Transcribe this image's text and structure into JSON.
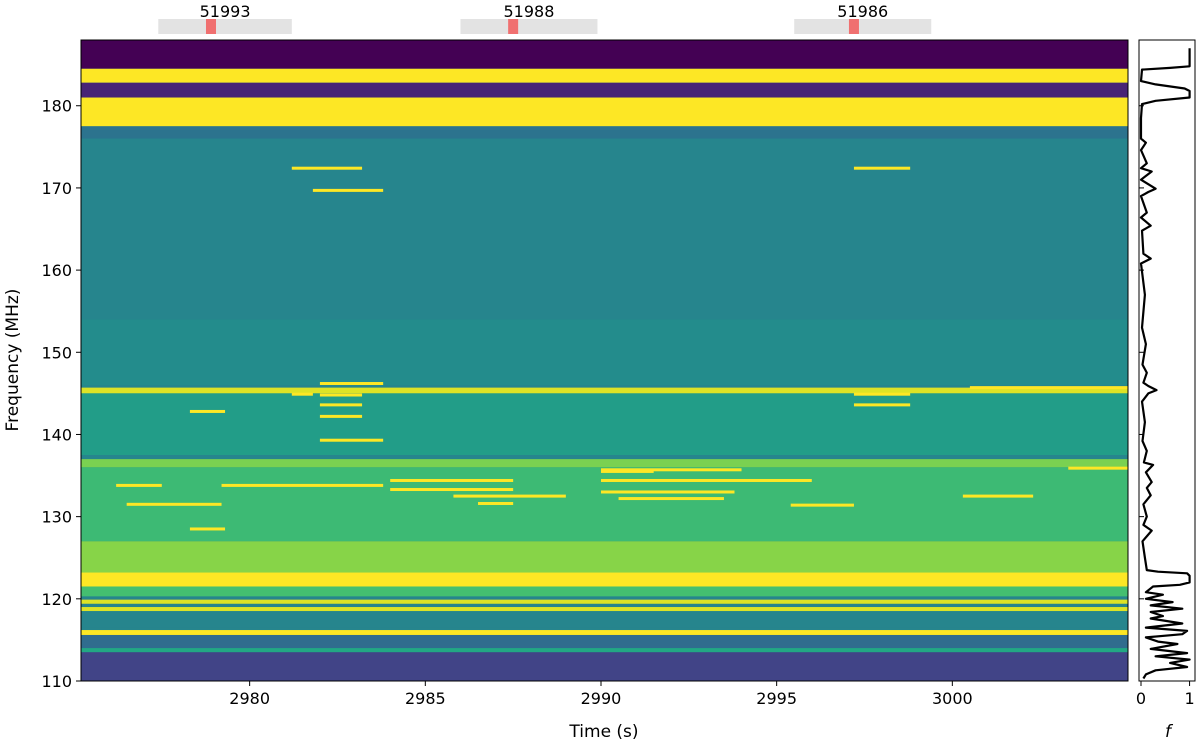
{
  "chart_data": [
    {
      "type": "heatmap",
      "title": "",
      "xlabel": "Time (s)",
      "ylabel": "Frequency (MHz)",
      "xlim": [
        2975.2,
        3005.0
      ],
      "ylim": [
        110,
        188
      ],
      "xticks": [
        2980,
        2985,
        2990,
        2995,
        3000
      ],
      "yticks": [
        110,
        120,
        130,
        140,
        150,
        160,
        170,
        180
      ],
      "colormap": "viridis",
      "background_level": 0.45,
      "full_band_levels": [
        {
          "f0": 184.5,
          "f1": 188.0,
          "level": 0.0
        },
        {
          "f0": 182.8,
          "f1": 184.5,
          "level": 1.0
        },
        {
          "f0": 181.0,
          "f1": 182.8,
          "level": 0.1
        },
        {
          "f0": 177.5,
          "f1": 181.0,
          "level": 1.0
        },
        {
          "f0": 176.0,
          "f1": 177.5,
          "level": 0.38
        },
        {
          "f0": 154.0,
          "f1": 176.0,
          "level": 0.45
        },
        {
          "f0": 146.0,
          "f1": 154.0,
          "level": 0.48
        },
        {
          "f0": 145.0,
          "f1": 145.7,
          "level": 0.95
        },
        {
          "f0": 137.5,
          "f1": 145.0,
          "level": 0.55
        },
        {
          "f0": 136.0,
          "f1": 137.0,
          "level": 0.8
        },
        {
          "f0": 127.0,
          "f1": 136.0,
          "level": 0.68
        },
        {
          "f0": 123.2,
          "f1": 127.0,
          "level": 0.82
        },
        {
          "f0": 121.5,
          "f1": 123.2,
          "level": 1.0
        },
        {
          "f0": 120.3,
          "f1": 121.5,
          "level": 0.7
        },
        {
          "f0": 119.4,
          "f1": 119.9,
          "level": 0.95
        },
        {
          "f0": 118.5,
          "f1": 119.0,
          "level": 0.95
        },
        {
          "f0": 116.5,
          "f1": 118.5,
          "level": 0.45
        },
        {
          "f0": 115.6,
          "f1": 116.2,
          "level": 1.0
        },
        {
          "f0": 114.0,
          "f1": 115.6,
          "level": 0.35
        },
        {
          "f0": 113.5,
          "f1": 114.0,
          "level": 0.6
        },
        {
          "f0": 110.0,
          "f1": 113.5,
          "level": 0.2
        }
      ],
      "narrowband_segments": [
        {
          "t0": 2981.2,
          "t1": 2983.2,
          "f": 172.4
        },
        {
          "t0": 2981.8,
          "t1": 2983.8,
          "f": 169.7
        },
        {
          "t0": 2997.2,
          "t1": 2998.8,
          "f": 172.4
        },
        {
          "t0": 2982.0,
          "t1": 2983.8,
          "f": 146.2
        },
        {
          "t0": 2981.2,
          "t1": 2981.8,
          "f": 144.9
        },
        {
          "t0": 2982.0,
          "t1": 2983.2,
          "f": 144.8
        },
        {
          "t0": 2982.0,
          "t1": 2983.2,
          "f": 143.6
        },
        {
          "t0": 2982.0,
          "t1": 2983.2,
          "f": 142.2
        },
        {
          "t0": 2978.3,
          "t1": 2979.3,
          "f": 142.8
        },
        {
          "t0": 2982.0,
          "t1": 2983.8,
          "f": 139.3
        },
        {
          "t0": 2997.2,
          "t1": 2998.8,
          "f": 144.9
        },
        {
          "t0": 2997.2,
          "t1": 2998.8,
          "f": 143.6
        },
        {
          "t0": 2990.0,
          "t1": 2994.0,
          "f": 135.7
        },
        {
          "t0": 2990.0,
          "t1": 2991.5,
          "f": 135.5
        },
        {
          "t0": 2984.0,
          "t1": 2987.5,
          "f": 134.4
        },
        {
          "t0": 2990.0,
          "t1": 2996.0,
          "f": 134.4
        },
        {
          "t0": 2979.2,
          "t1": 2983.8,
          "f": 133.8
        },
        {
          "t0": 2984.0,
          "t1": 2987.5,
          "f": 133.3
        },
        {
          "t0": 2990.0,
          "t1": 2993.8,
          "f": 133.0
        },
        {
          "t0": 2985.8,
          "t1": 2989.0,
          "f": 132.5
        },
        {
          "t0": 2990.5,
          "t1": 2993.5,
          "f": 132.2
        },
        {
          "t0": 3000.3,
          "t1": 3002.3,
          "f": 132.5
        },
        {
          "t0": 2976.2,
          "t1": 2977.5,
          "f": 133.8
        },
        {
          "t0": 2976.5,
          "t1": 2979.2,
          "f": 131.5
        },
        {
          "t0": 2986.5,
          "t1": 2987.5,
          "f": 131.6
        },
        {
          "t0": 2995.4,
          "t1": 2997.2,
          "f": 131.4
        },
        {
          "t0": 3003.3,
          "t1": 3005.0,
          "f": 135.9
        },
        {
          "t0": 2978.3,
          "t1": 2979.3,
          "f": 128.5
        },
        {
          "t0": 3000.5,
          "t1": 3005.0,
          "f": 145.7
        }
      ],
      "scan_markers": [
        {
          "label": "51993",
          "t0": 2977.4,
          "t1": 2981.2,
          "marker_t": 2978.9
        },
        {
          "label": "51988",
          "t0": 2986.0,
          "t1": 2989.9,
          "marker_t": 2987.5
        },
        {
          "label": "51986",
          "t0": 2995.5,
          "t1": 2999.4,
          "marker_t": 2997.2
        }
      ],
      "colors": {
        "scan_bar": "#e3e3e3",
        "scan_marker": "#f07070"
      }
    },
    {
      "type": "line",
      "xlabel": "f",
      "ylabel": "",
      "xlim": [
        0,
        1.05
      ],
      "xticks": [
        0,
        1
      ],
      "ylim": [
        110,
        188
      ],
      "points": [
        [
          1.0,
          187.0
        ],
        [
          1.0,
          184.8
        ],
        [
          0.6,
          184.6
        ],
        [
          0.02,
          184.4
        ],
        [
          0.0,
          183.0
        ],
        [
          0.3,
          182.6
        ],
        [
          0.9,
          182.1
        ],
        [
          1.0,
          181.8
        ],
        [
          1.0,
          181.0
        ],
        [
          0.3,
          180.6
        ],
        [
          0.02,
          180.2
        ],
        [
          0.0,
          178.5
        ],
        [
          0.0,
          176.0
        ],
        [
          0.1,
          175.5
        ],
        [
          0.0,
          174.6
        ],
        [
          0.12,
          173.0
        ],
        [
          0.0,
          172.4
        ],
        [
          0.22,
          172.0
        ],
        [
          0.0,
          171.0
        ],
        [
          0.3,
          169.9
        ],
        [
          0.15,
          169.5
        ],
        [
          0.0,
          169.0
        ],
        [
          0.12,
          167.0
        ],
        [
          0.0,
          166.4
        ],
        [
          0.2,
          165.4
        ],
        [
          0.02,
          164.8
        ],
        [
          0.05,
          162.0
        ],
        [
          0.2,
          161.4
        ],
        [
          0.0,
          160.8
        ],
        [
          0.08,
          157.0
        ],
        [
          0.02,
          153.0
        ],
        [
          0.1,
          151.0
        ],
        [
          0.03,
          148.5
        ],
        [
          0.12,
          147.5
        ],
        [
          0.05,
          146.3
        ],
        [
          0.15,
          145.9
        ],
        [
          0.32,
          145.4
        ],
        [
          0.15,
          145.0
        ],
        [
          0.02,
          144.0
        ],
        [
          0.08,
          141.5
        ],
        [
          0.03,
          139.2
        ],
        [
          0.12,
          138.0
        ],
        [
          0.06,
          136.6
        ],
        [
          0.25,
          136.3
        ],
        [
          0.1,
          135.4
        ],
        [
          0.22,
          134.2
        ],
        [
          0.12,
          133.5
        ],
        [
          0.2,
          132.6
        ],
        [
          0.05,
          131.5
        ],
        [
          0.12,
          130.0
        ],
        [
          0.05,
          129.0
        ],
        [
          0.22,
          128.3
        ],
        [
          0.03,
          127.0
        ],
        [
          0.08,
          125.0
        ],
        [
          0.12,
          123.5
        ],
        [
          0.35,
          123.3
        ],
        [
          0.95,
          123.1
        ],
        [
          1.0,
          122.8
        ],
        [
          1.0,
          122.0
        ],
        [
          0.8,
          121.7
        ],
        [
          0.25,
          121.5
        ],
        [
          0.1,
          120.8
        ],
        [
          0.45,
          120.5
        ],
        [
          0.1,
          120.0
        ],
        [
          0.65,
          119.6
        ],
        [
          0.2,
          119.2
        ],
        [
          0.85,
          118.8
        ],
        [
          0.2,
          118.4
        ],
        [
          0.45,
          117.9
        ],
        [
          0.2,
          117.6
        ],
        [
          0.85,
          117.0
        ],
        [
          0.1,
          116.5
        ],
        [
          0.95,
          116.1
        ],
        [
          0.85,
          115.7
        ],
        [
          0.1,
          115.3
        ],
        [
          0.35,
          114.8
        ],
        [
          0.75,
          114.5
        ],
        [
          0.2,
          113.9
        ],
        [
          0.95,
          113.4
        ],
        [
          0.3,
          113.0
        ],
        [
          1.0,
          112.6
        ],
        [
          0.6,
          112.2
        ],
        [
          0.95,
          111.7
        ],
        [
          0.3,
          111.3
        ],
        [
          0.1,
          110.8
        ],
        [
          0.05,
          110.3
        ]
      ]
    }
  ]
}
